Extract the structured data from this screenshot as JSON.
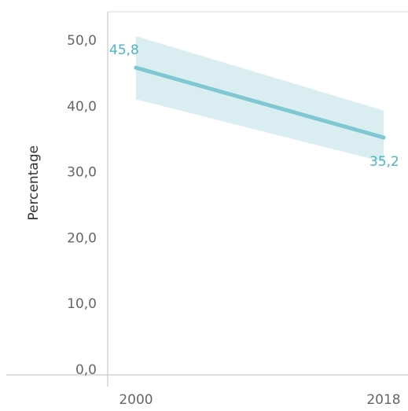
{
  "chart_data": {
    "type": "line",
    "x": [
      "2000",
      "2018"
    ],
    "series": [
      {
        "values": [
          45.8,
          35.2
        ],
        "lower": [
          41.0,
          31.5
        ],
        "upper": [
          50.6,
          39.3
        ],
        "data_labels": [
          "45,8",
          "35,2"
        ],
        "color": "#7fc8d2",
        "label_color": "#4cb5c2",
        "band_color": "#d6ecf0"
      }
    ],
    "ylabel": "Percentage",
    "ylim": [
      0,
      50
    ],
    "yticks": [
      0,
      10,
      20,
      30,
      40,
      50
    ],
    "ytick_labels": [
      "0,0",
      "10,0",
      "20,0",
      "30,0",
      "40,0",
      "50,0"
    ],
    "xtick_labels": [
      "2000",
      "2018"
    ],
    "grid": false,
    "legend": "none"
  }
}
